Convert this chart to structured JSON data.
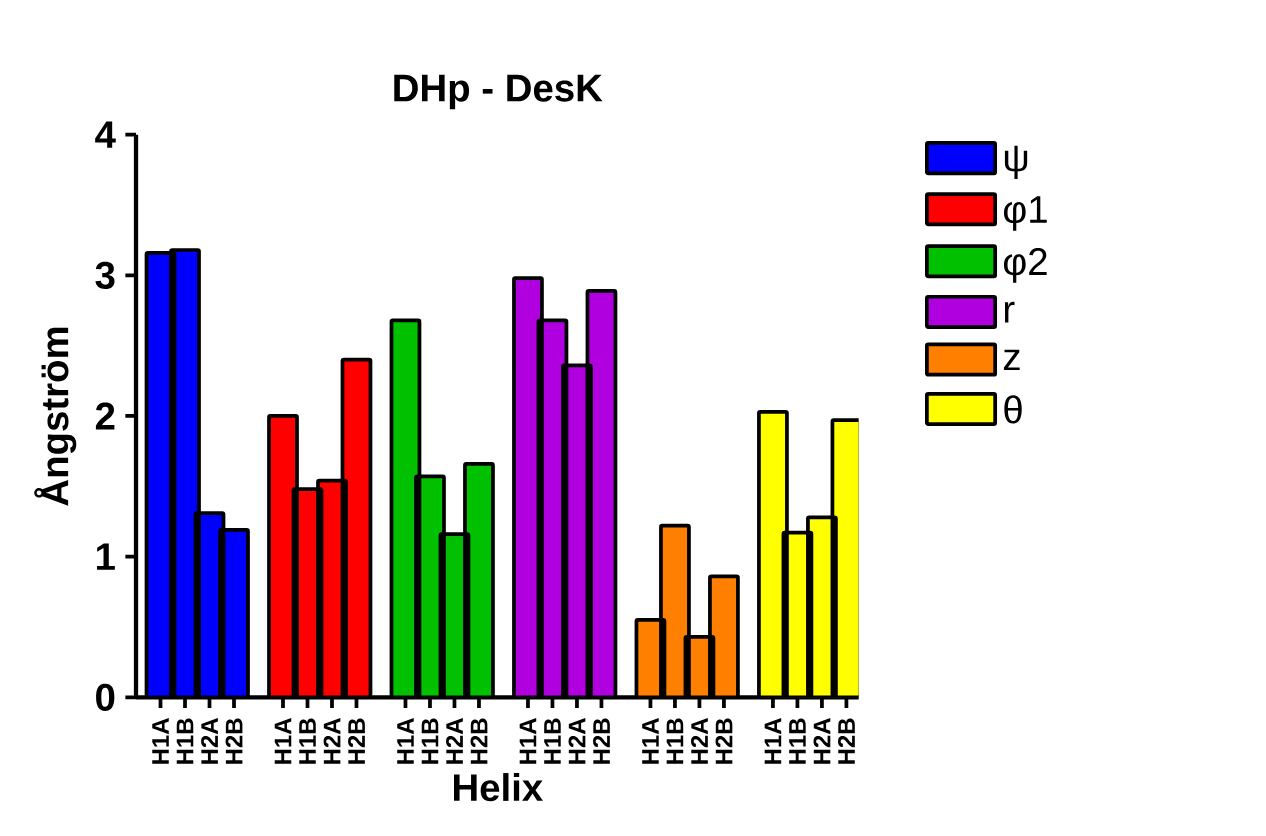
{
  "chart_data": {
    "type": "bar",
    "title": "DHp - DesK",
    "xlabel": "Helix",
    "ylabel": "Ångström",
    "categories": [
      "H1A",
      "H1B",
      "H2A",
      "H2B",
      null,
      "H1A",
      "H1B",
      "H2A",
      "H2B",
      null,
      "H1A",
      "H1B",
      "H2A",
      "H2B",
      null,
      "H1A",
      "H1B",
      "H2A",
      "H2B",
      null,
      "H1A",
      "H1B",
      "H2A",
      "H2B",
      null,
      "H1A",
      "H1B",
      "H2A",
      "H2B"
    ],
    "series": [
      {
        "name": "ψ",
        "color": "#0000ff",
        "values": [
          3.16,
          3.18,
          1.31,
          1.19,
          null,
          null,
          null,
          null,
          null,
          null,
          null,
          null,
          null,
          null,
          null,
          null,
          null,
          null,
          null,
          null,
          null,
          null,
          null,
          null,
          null,
          null,
          null,
          null,
          null
        ]
      },
      {
        "name": "φ1",
        "color": "#ff0000",
        "values": [
          null,
          null,
          null,
          null,
          null,
          2.0,
          1.48,
          1.54,
          2.4,
          null,
          null,
          null,
          null,
          null,
          null,
          null,
          null,
          null,
          null,
          null,
          null,
          null,
          null,
          null,
          null,
          null,
          null,
          null,
          null
        ]
      },
      {
        "name": "φ2",
        "color": "#00c000",
        "values": [
          null,
          null,
          null,
          null,
          null,
          null,
          null,
          null,
          null,
          null,
          2.68,
          1.57,
          1.16,
          1.66,
          null,
          null,
          null,
          null,
          null,
          null,
          null,
          null,
          null,
          null,
          null,
          null,
          null,
          null,
          null
        ]
      },
      {
        "name": "r",
        "color": "#b000e0",
        "values": [
          null,
          null,
          null,
          null,
          null,
          null,
          null,
          null,
          null,
          null,
          null,
          null,
          null,
          null,
          null,
          2.98,
          2.68,
          2.36,
          2.89,
          null,
          null,
          null,
          null,
          null,
          null,
          null,
          null,
          null,
          null
        ]
      },
      {
        "name": "z",
        "color": "#ff8000",
        "values": [
          null,
          null,
          null,
          null,
          null,
          null,
          null,
          null,
          null,
          null,
          null,
          null,
          null,
          null,
          null,
          null,
          null,
          null,
          null,
          null,
          0.55,
          1.22,
          0.43,
          0.86,
          null,
          null,
          null,
          null,
          null
        ]
      },
      {
        "name": "θ",
        "color": "#ffff00",
        "values": [
          null,
          null,
          null,
          null,
          null,
          null,
          null,
          null,
          null,
          null,
          null,
          null,
          null,
          null,
          null,
          null,
          null,
          null,
          null,
          null,
          null,
          null,
          null,
          null,
          null,
          2.03,
          1.17,
          1.28,
          1.97
        ]
      }
    ],
    "ylim": [
      0,
      4
    ],
    "yticks": [
      0,
      1,
      2,
      3,
      4
    ],
    "grid": false,
    "legend": "right"
  }
}
